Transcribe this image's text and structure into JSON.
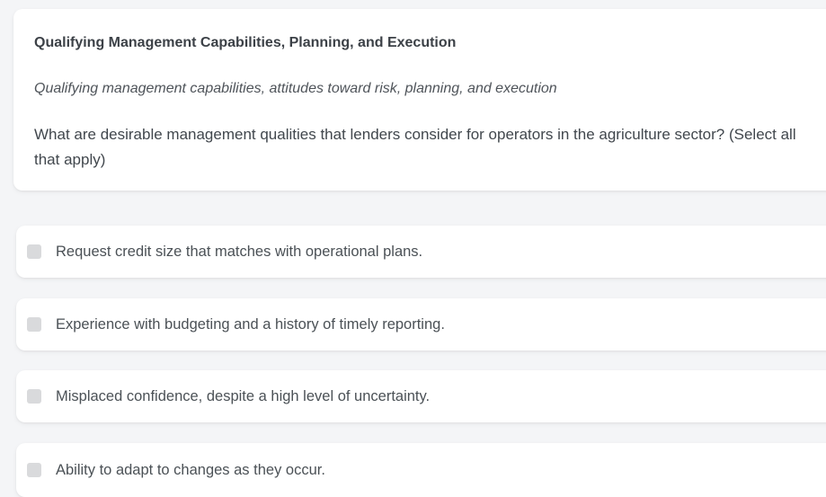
{
  "question_card": {
    "title": "Qualifying Management Capabilities, Planning, and Execution",
    "subtitle": "Qualifying management capabilities, attitudes toward risk, planning, and execution",
    "question": "What are desirable management qualities that lenders consider for operators in the agriculture sector? (Select all that apply)"
  },
  "options": [
    {
      "label": "Request credit size that matches with operational plans.",
      "checked": false
    },
    {
      "label": "Experience with budgeting and a history of timely reporting.",
      "checked": false
    },
    {
      "label": "Misplaced confidence, despite a high level of uncertainty.",
      "checked": false
    },
    {
      "label": "Ability to adapt to changes as they occur.",
      "checked": false
    }
  ],
  "colors": {
    "page_background": "#f4f5f7",
    "card_background": "#ffffff",
    "title_text": "#3c4147",
    "body_text": "#41474d",
    "checkbox_fill": "#d9dadc"
  }
}
